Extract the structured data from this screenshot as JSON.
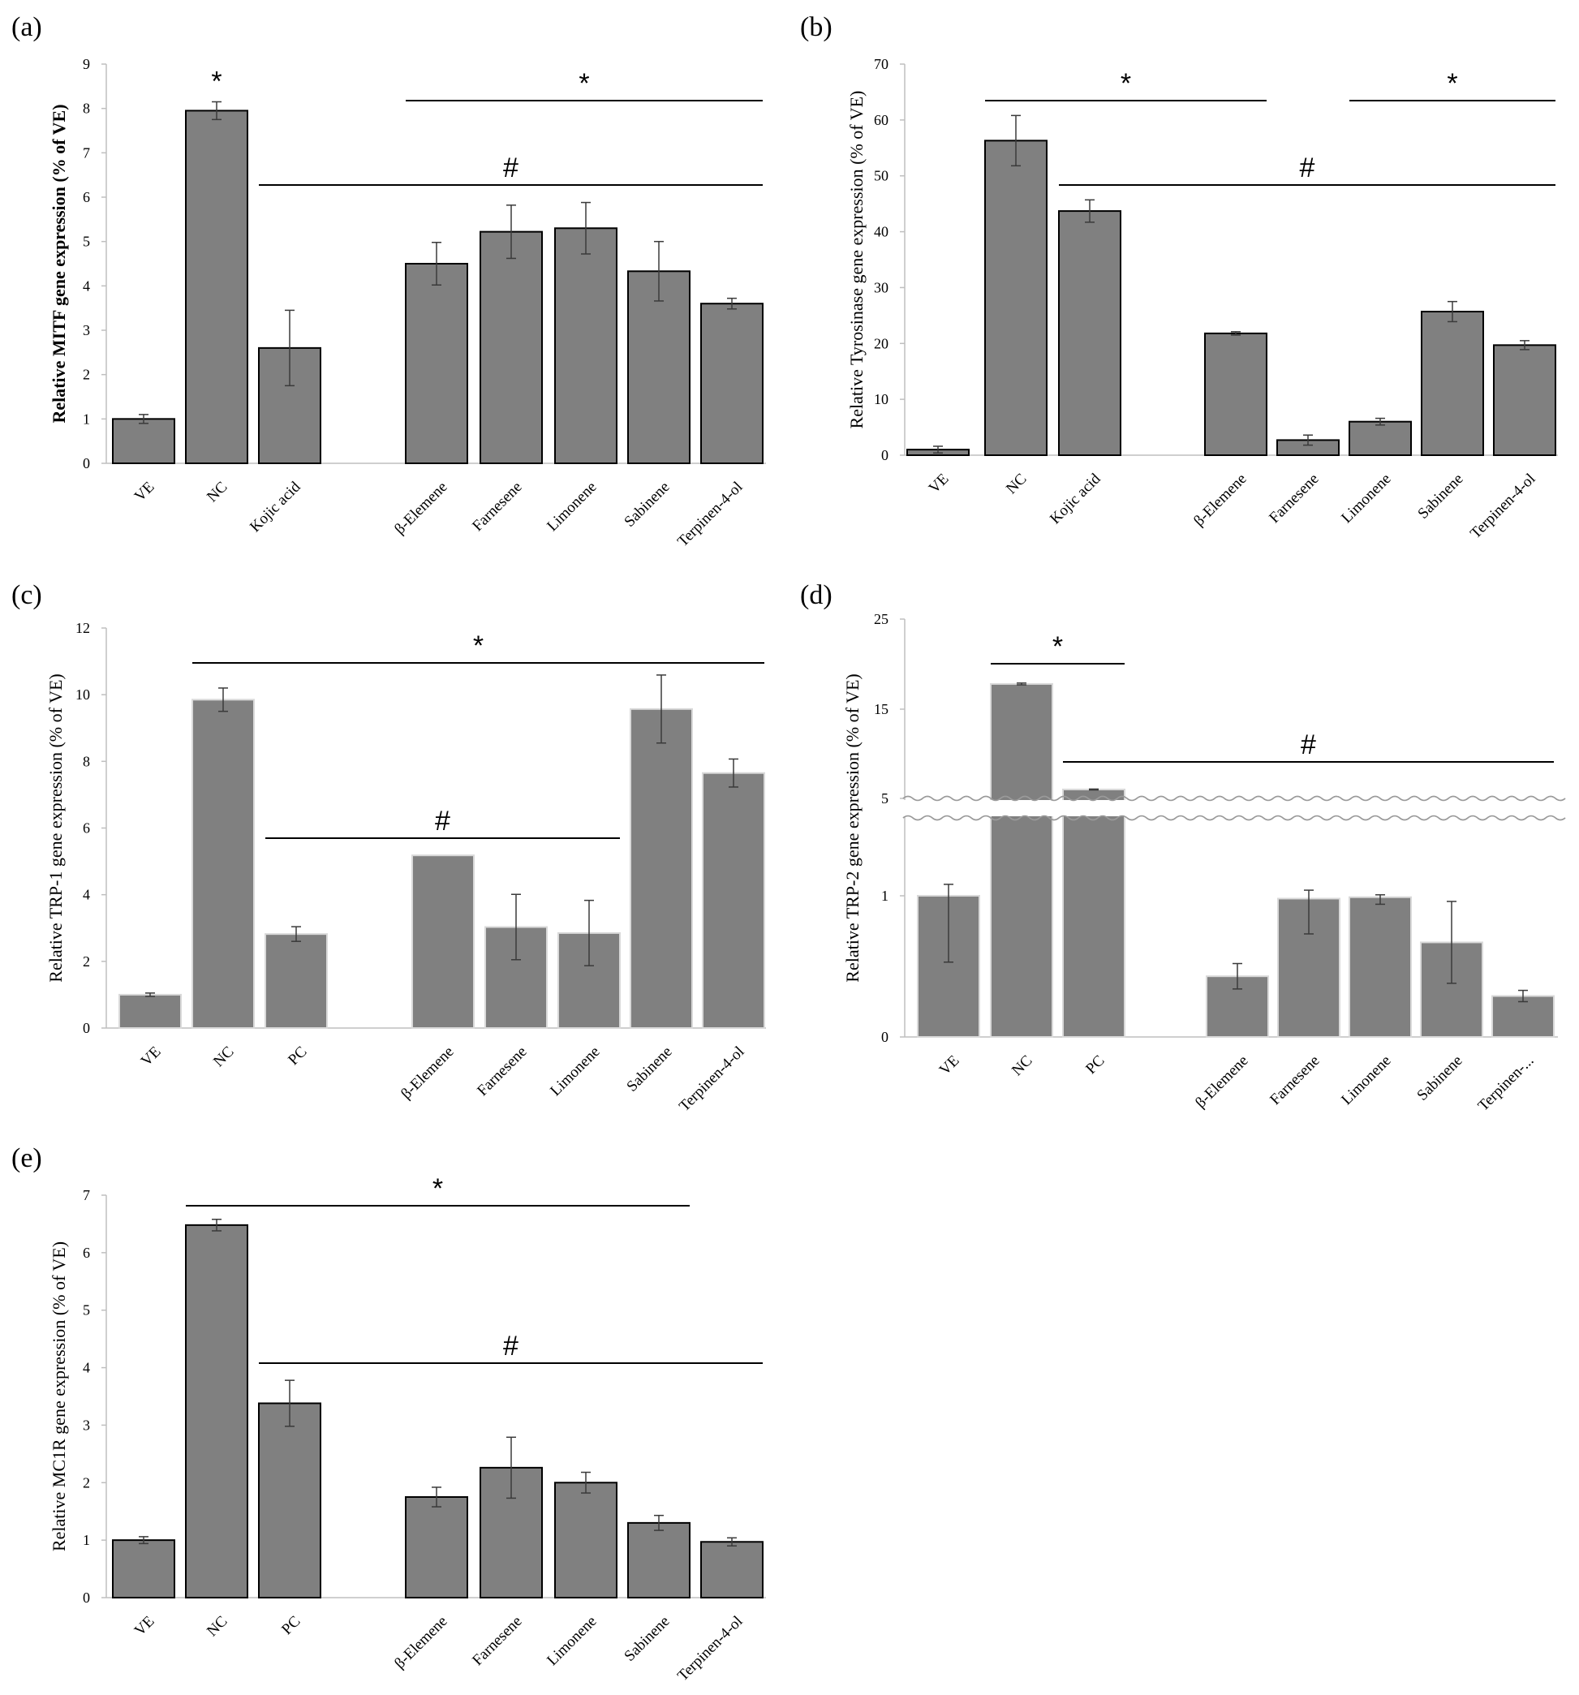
{
  "chart_data": [
    {
      "panel": "(a)",
      "type": "bar",
      "ylabel": "Relative MITF gene expression (% of VE)",
      "ylabel_bold": true,
      "ylim": [
        0,
        9
      ],
      "yticks": [
        0,
        1,
        2,
        3,
        4,
        5,
        6,
        7,
        8,
        9
      ],
      "categories": [
        "VE",
        "NC",
        "Kojic acid",
        "",
        "β-Elemene",
        "Farnesene",
        "Limonene",
        "Sabinene",
        "Terpinen-4-ol"
      ],
      "values": [
        1.0,
        7.95,
        2.6,
        null,
        4.5,
        5.22,
        5.3,
        4.33,
        3.6
      ],
      "errors": [
        0.1,
        0.2,
        0.85,
        null,
        0.48,
        0.6,
        0.58,
        0.67,
        0.12
      ],
      "bar_color": "#808080",
      "bar_stroke": "#000000",
      "annotations": [
        {
          "symbol": "*",
          "over": [
            1,
            1
          ],
          "line": false
        },
        {
          "symbol": "*",
          "over": [
            4,
            8
          ],
          "line": true
        },
        {
          "symbol": "#",
          "over": [
            2,
            8
          ],
          "line": true
        }
      ]
    },
    {
      "panel": "(b)",
      "type": "bar",
      "ylabel": "Relative Tyrosinase gene expression (% of VE)",
      "ylabel_bold": false,
      "ylim": [
        0,
        70
      ],
      "yticks": [
        0,
        10,
        20,
        30,
        40,
        50,
        60,
        70
      ],
      "categories": [
        "VE",
        "NC",
        "Kojic acid",
        "",
        "β-Elemene",
        "Farnesene",
        "Limonene",
        "Sabinene",
        "Terpinen-4-ol"
      ],
      "values": [
        1.0,
        56.3,
        43.7,
        null,
        21.8,
        2.7,
        6.0,
        25.7,
        19.7
      ],
      "errors": [
        0.6,
        4.5,
        2.0,
        null,
        0.3,
        0.9,
        0.6,
        1.8,
        0.8
      ],
      "bar_color": "#808080",
      "bar_stroke": "#000000",
      "annotations": [
        {
          "symbol": "*",
          "over": [
            1,
            4
          ],
          "line": true
        },
        {
          "symbol": "*",
          "over": [
            6,
            8
          ],
          "line": true
        },
        {
          "symbol": "#",
          "over": [
            2,
            8
          ],
          "line": true
        }
      ]
    },
    {
      "panel": "(c)",
      "type": "bar",
      "ylabel": "Relative TRP-1 gene expression (% of VE)",
      "ylabel_bold": false,
      "ylim": [
        0,
        12
      ],
      "yticks": [
        0,
        2,
        4,
        6,
        8,
        10,
        12
      ],
      "categories": [
        "VE",
        "NC",
        "PC",
        "",
        "β-Elemene",
        "Farnesene",
        "Limonene",
        "Sabinene",
        "Terpinen-4-ol"
      ],
      "values": [
        1.0,
        9.85,
        2.82,
        null,
        5.18,
        3.03,
        2.85,
        9.57,
        7.65
      ],
      "errors": [
        0.05,
        0.35,
        0.22,
        null,
        0.0,
        0.98,
        0.98,
        1.02,
        0.42
      ],
      "bar_color": "#808080",
      "bar_stroke": "#d9d9d9",
      "annotations": [
        {
          "symbol": "*",
          "over": [
            1,
            8
          ],
          "line": true
        },
        {
          "symbol": "#",
          "over": [
            2,
            6
          ],
          "line": true
        }
      ]
    },
    {
      "panel": "(d)",
      "type": "bar",
      "ylabel": "Relative TRP-2 gene expression (% of VE)",
      "ylabel_bold": false,
      "axis_break": true,
      "yticks": [
        "0",
        "1",
        "5",
        "15",
        "25"
      ],
      "categories": [
        "VE",
        "NC",
        "PC",
        "",
        "β-Elemene",
        "Farnesene",
        "Limonene",
        "Sabinene",
        "Terpinen-..."
      ],
      "values": [
        1.0,
        17.8,
        6.0,
        null,
        0.43,
        0.98,
        0.99,
        0.67,
        0.29
      ],
      "errors": [
        0.47,
        0.1,
        0.05,
        null,
        0.09,
        0.25,
        0.05,
        0.29,
        0.04
      ],
      "bar_color": "#808080",
      "bar_stroke": "#d9d9d9",
      "annotations": [
        {
          "symbol": "*",
          "over": [
            1,
            2
          ],
          "line": true
        },
        {
          "symbol": "#",
          "over": [
            2,
            8
          ],
          "line": true
        }
      ]
    },
    {
      "panel": "(e)",
      "type": "bar",
      "ylabel": "Relative MC1R gene expression (% of VE)",
      "ylabel_bold": false,
      "ylim": [
        0,
        7
      ],
      "yticks": [
        0,
        1,
        2,
        3,
        4,
        5,
        6,
        7
      ],
      "categories": [
        "VE",
        "NC",
        "PC",
        "",
        "β-Elemene",
        "Farnesene",
        "Limonene",
        "Sabinene",
        "Terpinen-4-ol"
      ],
      "values": [
        1.0,
        6.48,
        3.38,
        null,
        1.75,
        2.26,
        2.0,
        1.3,
        0.97
      ],
      "errors": [
        0.06,
        0.1,
        0.4,
        null,
        0.17,
        0.53,
        0.18,
        0.13,
        0.07
      ],
      "bar_color": "#808080",
      "bar_stroke": "#000000",
      "annotations": [
        {
          "symbol": "*",
          "over": [
            1,
            7
          ],
          "line": true
        },
        {
          "symbol": "#",
          "over": [
            2,
            8
          ],
          "line": true
        }
      ]
    }
  ]
}
